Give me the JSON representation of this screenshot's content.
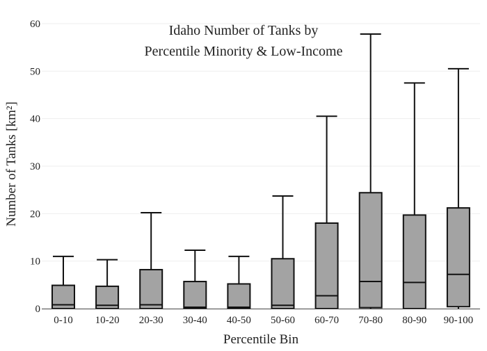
{
  "chart_data": {
    "type": "box",
    "title_lines": [
      "Idaho Number of Tanks by",
      "Percentile Minority & Low-Income"
    ],
    "xlabel": "Percentile Bin",
    "ylabel": "Number of Tanks  [km²]",
    "ylim": [
      0,
      60
    ],
    "yticks": [
      0,
      10,
      20,
      30,
      40,
      50,
      60
    ],
    "grid": true,
    "categories": [
      "0-10",
      "10-20",
      "20-30",
      "30-40",
      "40-50",
      "50-60",
      "60-70",
      "70-80",
      "80-90",
      "90-100"
    ],
    "boxes": [
      {
        "category": "0-10",
        "whisker_low": 0,
        "q1": 0,
        "median": 0.8,
        "q3": 4.9,
        "whisker_high": 11.0
      },
      {
        "category": "10-20",
        "whisker_low": 0,
        "q1": 0,
        "median": 0.7,
        "q3": 4.7,
        "whisker_high": 10.3
      },
      {
        "category": "20-30",
        "whisker_low": 0,
        "q1": 0,
        "median": 0.8,
        "q3": 8.2,
        "whisker_high": 20.2
      },
      {
        "category": "30-40",
        "whisker_low": 0,
        "q1": 0,
        "median": 0.3,
        "q3": 5.7,
        "whisker_high": 12.3
      },
      {
        "category": "40-50",
        "whisker_low": 0,
        "q1": 0,
        "median": 0.3,
        "q3": 5.2,
        "whisker_high": 11.0
      },
      {
        "category": "50-60",
        "whisker_low": 0,
        "q1": 0,
        "median": 0.7,
        "q3": 10.5,
        "whisker_high": 23.7
      },
      {
        "category": "60-70",
        "whisker_low": 0,
        "q1": 0,
        "median": 2.7,
        "q3": 18.0,
        "whisker_high": 40.5
      },
      {
        "category": "70-80",
        "whisker_low": 0,
        "q1": 0.2,
        "median": 5.7,
        "q3": 24.4,
        "whisker_high": 57.8
      },
      {
        "category": "80-90",
        "whisker_low": 0,
        "q1": 0,
        "median": 5.5,
        "q3": 19.7,
        "whisker_high": 47.5
      },
      {
        "category": "90-100",
        "whisker_low": 0,
        "q1": 0.4,
        "median": 7.2,
        "q3": 21.2,
        "whisker_high": 50.5
      }
    ],
    "colors": {
      "box_fill": "#a3a3a3",
      "stroke": "#111111",
      "grid": "#eeeeee",
      "axis": "#444444",
      "text": "#222222"
    }
  }
}
